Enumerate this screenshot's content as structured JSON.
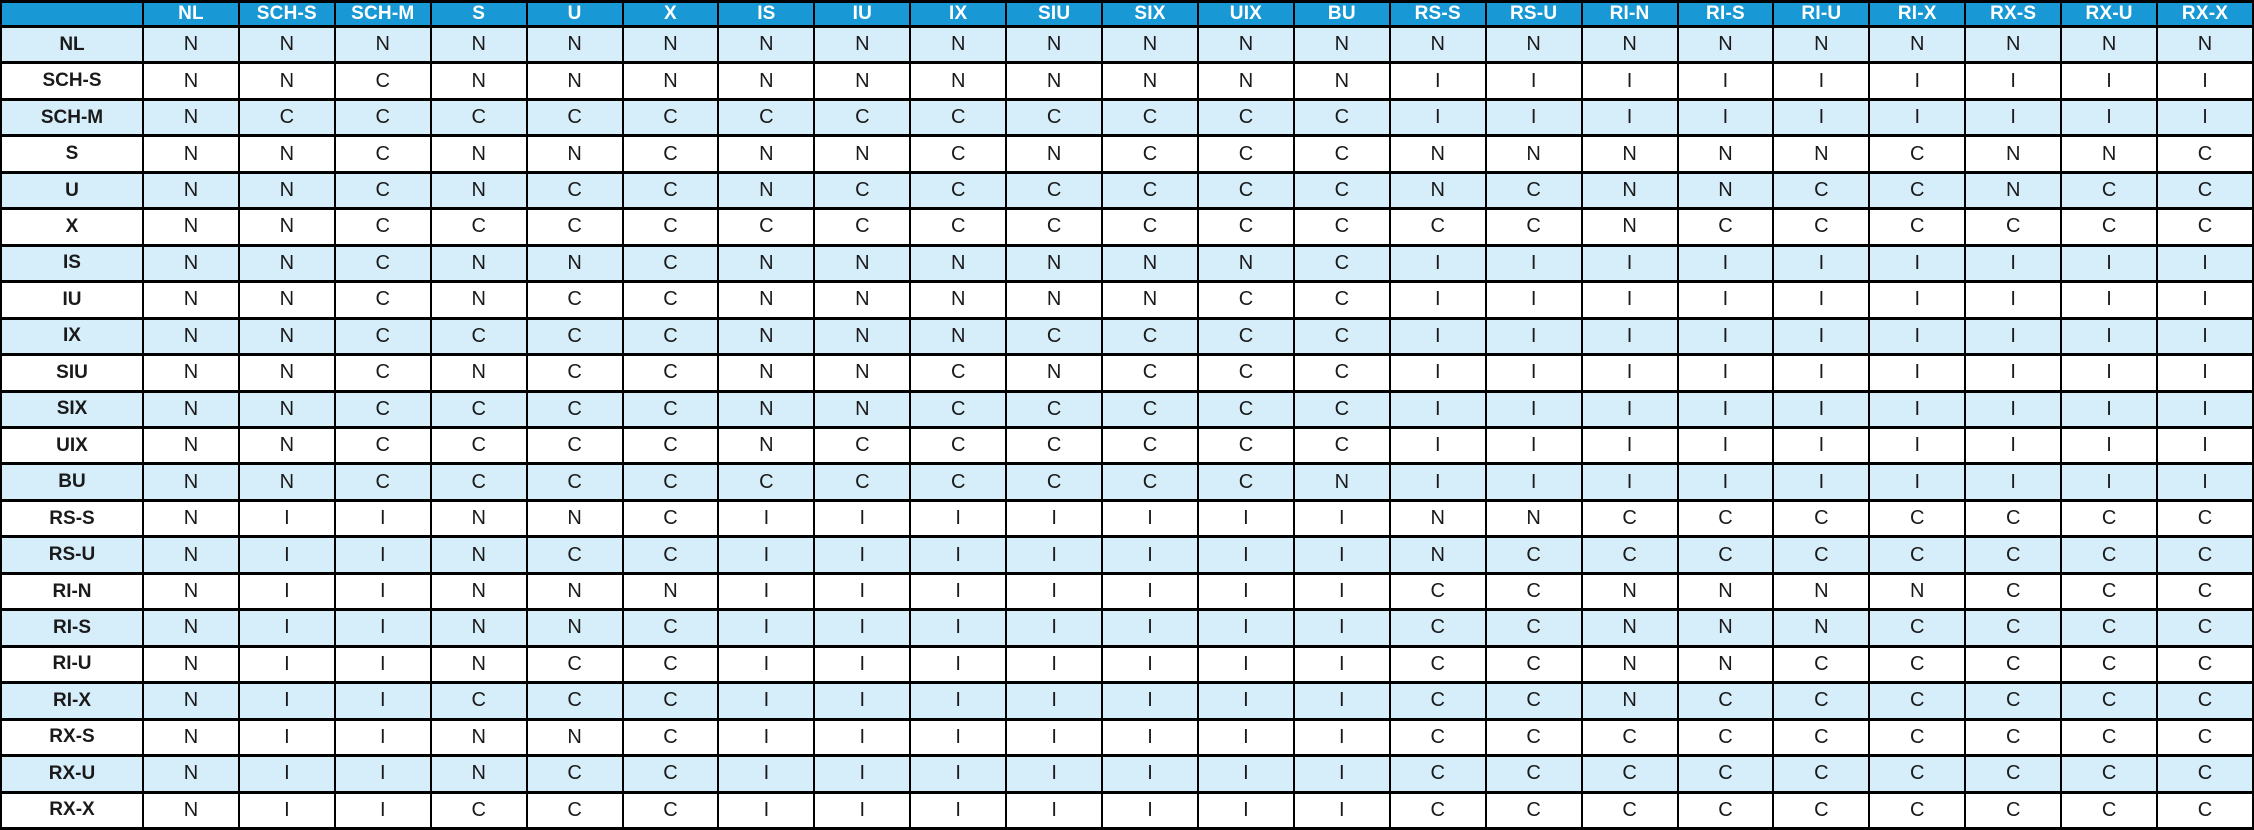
{
  "chart_data": {
    "type": "table",
    "title": "",
    "corner_label": "",
    "columns": [
      "NL",
      "SCH-S",
      "SCH-M",
      "S",
      "U",
      "X",
      "IS",
      "IU",
      "IX",
      "SIU",
      "SIX",
      "UIX",
      "BU",
      "RS-S",
      "RS-U",
      "RI-N",
      "RI-S",
      "RI-U",
      "RI-X",
      "RX-S",
      "RX-U",
      "RX-X"
    ],
    "rows": [
      {
        "label": "NL",
        "values": [
          "N",
          "N",
          "N",
          "N",
          "N",
          "N",
          "N",
          "N",
          "N",
          "N",
          "N",
          "N",
          "N",
          "N",
          "N",
          "N",
          "N",
          "N",
          "N",
          "N",
          "N",
          "N"
        ]
      },
      {
        "label": "SCH-S",
        "values": [
          "N",
          "N",
          "C",
          "N",
          "N",
          "N",
          "N",
          "N",
          "N",
          "N",
          "N",
          "N",
          "N",
          "I",
          "I",
          "I",
          "I",
          "I",
          "I",
          "I",
          "I",
          "I"
        ]
      },
      {
        "label": "SCH-M",
        "values": [
          "N",
          "C",
          "C",
          "C",
          "C",
          "C",
          "C",
          "C",
          "C",
          "C",
          "C",
          "C",
          "C",
          "I",
          "I",
          "I",
          "I",
          "I",
          "I",
          "I",
          "I",
          "I"
        ]
      },
      {
        "label": "S",
        "values": [
          "N",
          "N",
          "C",
          "N",
          "N",
          "C",
          "N",
          "N",
          "C",
          "N",
          "C",
          "C",
          "C",
          "N",
          "N",
          "N",
          "N",
          "N",
          "C",
          "N",
          "N",
          "C"
        ]
      },
      {
        "label": "U",
        "values": [
          "N",
          "N",
          "C",
          "N",
          "C",
          "C",
          "N",
          "C",
          "C",
          "C",
          "C",
          "C",
          "C",
          "N",
          "C",
          "N",
          "N",
          "C",
          "C",
          "N",
          "C",
          "C"
        ]
      },
      {
        "label": "X",
        "values": [
          "N",
          "N",
          "C",
          "C",
          "C",
          "C",
          "C",
          "C",
          "C",
          "C",
          "C",
          "C",
          "C",
          "C",
          "C",
          "N",
          "C",
          "C",
          "C",
          "C",
          "C",
          "C"
        ]
      },
      {
        "label": "IS",
        "values": [
          "N",
          "N",
          "C",
          "N",
          "N",
          "C",
          "N",
          "N",
          "N",
          "N",
          "N",
          "N",
          "C",
          "I",
          "I",
          "I",
          "I",
          "I",
          "I",
          "I",
          "I",
          "I"
        ]
      },
      {
        "label": "IU",
        "values": [
          "N",
          "N",
          "C",
          "N",
          "C",
          "C",
          "N",
          "N",
          "N",
          "N",
          "N",
          "C",
          "C",
          "I",
          "I",
          "I",
          "I",
          "I",
          "I",
          "I",
          "I",
          "I"
        ]
      },
      {
        "label": "IX",
        "values": [
          "N",
          "N",
          "C",
          "C",
          "C",
          "C",
          "N",
          "N",
          "N",
          "C",
          "C",
          "C",
          "C",
          "I",
          "I",
          "I",
          "I",
          "I",
          "I",
          "I",
          "I",
          "I"
        ]
      },
      {
        "label": "SIU",
        "values": [
          "N",
          "N",
          "C",
          "N",
          "C",
          "C",
          "N",
          "N",
          "C",
          "N",
          "C",
          "C",
          "C",
          "I",
          "I",
          "I",
          "I",
          "I",
          "I",
          "I",
          "I",
          "I"
        ]
      },
      {
        "label": "SIX",
        "values": [
          "N",
          "N",
          "C",
          "C",
          "C",
          "C",
          "N",
          "N",
          "C",
          "C",
          "C",
          "C",
          "C",
          "I",
          "I",
          "I",
          "I",
          "I",
          "I",
          "I",
          "I",
          "I"
        ]
      },
      {
        "label": "UIX",
        "values": [
          "N",
          "N",
          "C",
          "C",
          "C",
          "C",
          "N",
          "C",
          "C",
          "C",
          "C",
          "C",
          "C",
          "I",
          "I",
          "I",
          "I",
          "I",
          "I",
          "I",
          "I",
          "I"
        ]
      },
      {
        "label": "BU",
        "values": [
          "N",
          "N",
          "C",
          "C",
          "C",
          "C",
          "C",
          "C",
          "C",
          "C",
          "C",
          "C",
          "N",
          "I",
          "I",
          "I",
          "I",
          "I",
          "I",
          "I",
          "I",
          "I"
        ]
      },
      {
        "label": "RS-S",
        "values": [
          "N",
          "I",
          "I",
          "N",
          "N",
          "C",
          "I",
          "I",
          "I",
          "I",
          "I",
          "I",
          "I",
          "N",
          "N",
          "C",
          "C",
          "C",
          "C",
          "C",
          "C",
          "C"
        ]
      },
      {
        "label": "RS-U",
        "values": [
          "N",
          "I",
          "I",
          "N",
          "C",
          "C",
          "I",
          "I",
          "I",
          "I",
          "I",
          "I",
          "I",
          "N",
          "C",
          "C",
          "C",
          "C",
          "C",
          "C",
          "C",
          "C"
        ]
      },
      {
        "label": "RI-N",
        "values": [
          "N",
          "I",
          "I",
          "N",
          "N",
          "N",
          "I",
          "I",
          "I",
          "I",
          "I",
          "I",
          "I",
          "C",
          "C",
          "N",
          "N",
          "N",
          "N",
          "C",
          "C",
          "C"
        ]
      },
      {
        "label": "RI-S",
        "values": [
          "N",
          "I",
          "I",
          "N",
          "N",
          "C",
          "I",
          "I",
          "I",
          "I",
          "I",
          "I",
          "I",
          "C",
          "C",
          "N",
          "N",
          "N",
          "C",
          "C",
          "C",
          "C"
        ]
      },
      {
        "label": "RI-U",
        "values": [
          "N",
          "I",
          "I",
          "N",
          "C",
          "C",
          "I",
          "I",
          "I",
          "I",
          "I",
          "I",
          "I",
          "C",
          "C",
          "N",
          "N",
          "C",
          "C",
          "C",
          "C",
          "C"
        ]
      },
      {
        "label": "RI-X",
        "values": [
          "N",
          "I",
          "I",
          "C",
          "C",
          "C",
          "I",
          "I",
          "I",
          "I",
          "I",
          "I",
          "I",
          "C",
          "C",
          "N",
          "C",
          "C",
          "C",
          "C",
          "C",
          "C"
        ]
      },
      {
        "label": "RX-S",
        "values": [
          "N",
          "I",
          "I",
          "N",
          "N",
          "C",
          "I",
          "I",
          "I",
          "I",
          "I",
          "I",
          "I",
          "C",
          "C",
          "C",
          "C",
          "C",
          "C",
          "C",
          "C",
          "C"
        ]
      },
      {
        "label": "RX-U",
        "values": [
          "N",
          "I",
          "I",
          "N",
          "C",
          "C",
          "I",
          "I",
          "I",
          "I",
          "I",
          "I",
          "I",
          "C",
          "C",
          "C",
          "C",
          "C",
          "C",
          "C",
          "C",
          "C"
        ]
      },
      {
        "label": "RX-X",
        "values": [
          "N",
          "I",
          "I",
          "C",
          "C",
          "C",
          "I",
          "I",
          "I",
          "I",
          "I",
          "I",
          "I",
          "C",
          "C",
          "C",
          "C",
          "C",
          "C",
          "C",
          "C",
          "C"
        ]
      }
    ],
    "layout_hints": {
      "grid": "on",
      "header_position": "top-row-and-left-column",
      "row_striping": "even-rows-light-blue"
    }
  },
  "colors": {
    "header_bg": "#1899D6",
    "header_text": "#FFFFFF",
    "row_alt_bg": "#D6EDFA",
    "row_bg": "#FFFFFF",
    "border": "#000000",
    "cell_text": "#1A1A1A"
  }
}
